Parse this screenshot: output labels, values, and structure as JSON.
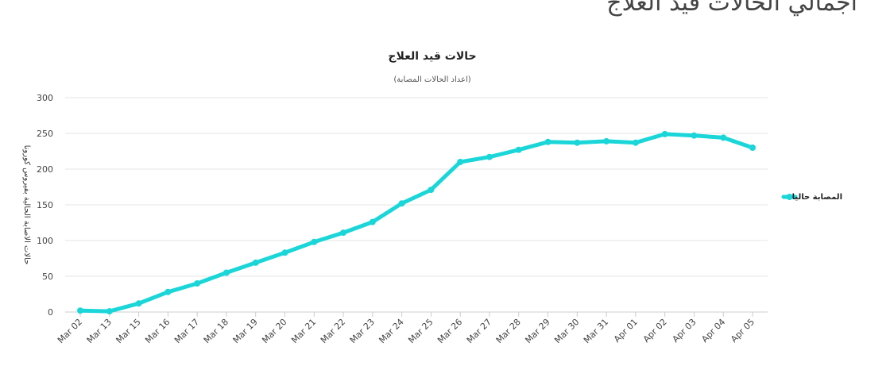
{
  "page": {
    "heading": "اجمالي الحالات قيد العلاج"
  },
  "chart_data": {
    "type": "line",
    "title": "حالات قيد العلاج",
    "subtitle": "(اعداد الحالات المصابة)",
    "ylabel": "حالات الاصابة الحالية بفيروس كورونا",
    "xlabel": "",
    "categories": [
      "Mar 02",
      "Mar 13",
      "Mar 15",
      "Mar 16",
      "Mar 17",
      "Mar 18",
      "Mar 19",
      "Mar 20",
      "Mar 21",
      "Mar 22",
      "Mar 23",
      "Mar 24",
      "Mar 25",
      "Mar 26",
      "Mar 27",
      "Mar 28",
      "Mar 29",
      "Mar 30",
      "Mar 31",
      "Apr 01",
      "Apr 02",
      "Apr 03",
      "Apr 04",
      "Apr 05"
    ],
    "series": [
      {
        "name": "المصابة حاليا",
        "color": "#1bd6d9",
        "values": [
          2,
          1,
          12,
          28,
          40,
          55,
          69,
          83,
          98,
          111,
          126,
          152,
          171,
          210,
          217,
          227,
          238,
          237,
          239,
          237,
          249,
          247,
          244,
          230
        ]
      }
    ],
    "ylim": [
      0,
      300
    ],
    "yticks": [
      0,
      50,
      100,
      150,
      200,
      250,
      300
    ],
    "grid": true,
    "legend_position": "right"
  }
}
